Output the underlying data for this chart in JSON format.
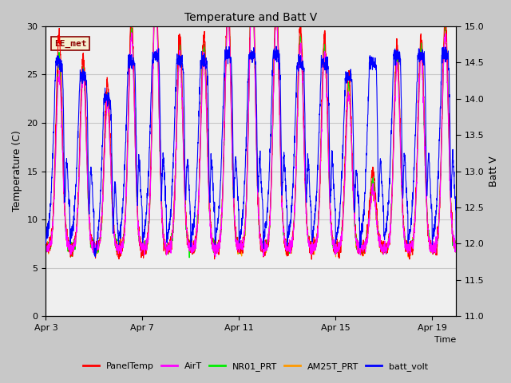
{
  "title": "Temperature and Batt V",
  "ylabel_left": "Temperature (C)",
  "ylabel_right": "Batt V",
  "xlabel": "Time",
  "ylim_left": [
    0,
    30
  ],
  "ylim_right": [
    11.0,
    15.0
  ],
  "yticks_left": [
    0,
    5,
    10,
    15,
    20,
    25,
    30
  ],
  "yticks_right": [
    11.0,
    11.5,
    12.0,
    12.5,
    13.0,
    13.5,
    14.0,
    14.5,
    15.0
  ],
  "xtick_labels": [
    "Apr 3",
    "Apr 7",
    "Apr 11",
    "Apr 15",
    "Apr 19"
  ],
  "xtick_positions": [
    0,
    4,
    8,
    12,
    16
  ],
  "xlim": [
    0,
    17
  ],
  "annotation_text": "EE_met",
  "annotation_fgcolor": "#8B0000",
  "annotation_bgcolor": "#f5f0d0",
  "fig_facecolor": "#c8c8c8",
  "ax_facecolor": "#e8e8e8",
  "inner_facecolor": "#f0f0f0",
  "grid_color": "#d0d0d0",
  "series_colors": {
    "PanelTemp": "#ff0000",
    "AirT": "#ff00ff",
    "NR01_PRT": "#00ee00",
    "AM25T_PRT": "#ff9900",
    "batt_volt": "#0000ff"
  },
  "legend_entries": [
    {
      "label": "PanelTemp",
      "color": "#ff0000"
    },
    {
      "label": "AirT",
      "color": "#ff00ff"
    },
    {
      "label": "NR01_PRT",
      "color": "#00ee00"
    },
    {
      "label": "AM25T_PRT",
      "color": "#ff9900"
    },
    {
      "label": "batt_volt",
      "color": "#0000ff"
    }
  ],
  "n_days": 17,
  "pts_per_day": 144,
  "seed": 42
}
